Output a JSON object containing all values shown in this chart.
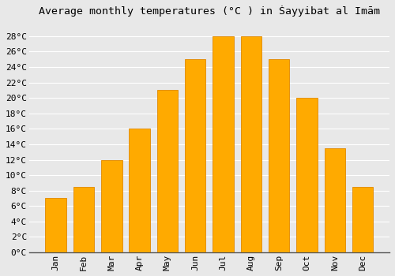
{
  "title": "Average monthly temperatures (°C ) in Ṡayyibat al Imām",
  "months": [
    "Jan",
    "Feb",
    "Mar",
    "Apr",
    "May",
    "Jun",
    "Jul",
    "Aug",
    "Sep",
    "Oct",
    "Nov",
    "Dec"
  ],
  "temperatures": [
    7,
    8.5,
    12,
    16,
    21,
    25,
    28,
    28,
    25,
    20,
    13.5,
    8.5
  ],
  "bar_color": "#FFAA00",
  "bar_edge_color": "#E08800",
  "background_color": "#e8e8e8",
  "grid_color": "#ffffff",
  "ylim": [
    0,
    30
  ],
  "ytick_max": 28,
  "ytick_step": 2,
  "title_fontsize": 9.5,
  "tick_fontsize": 8,
  "font_family": "monospace",
  "bar_width": 0.75
}
